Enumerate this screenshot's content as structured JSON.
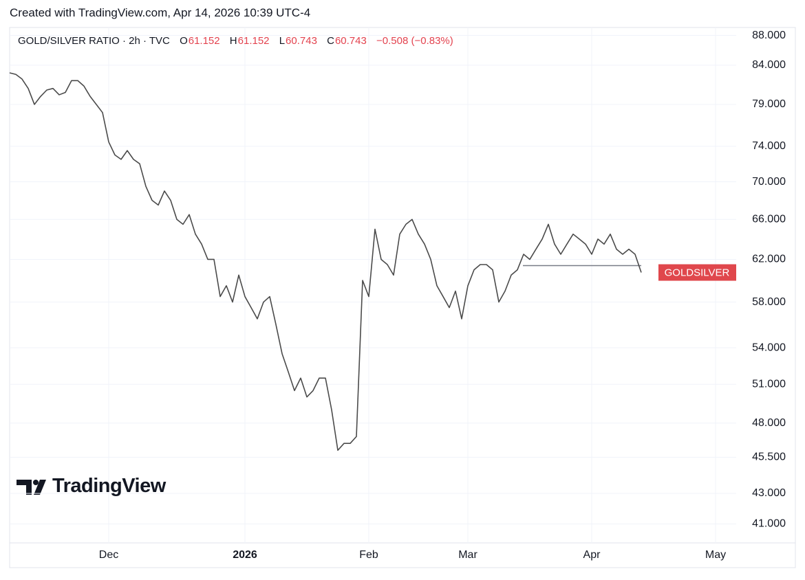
{
  "caption": "Created with TradingView.com, Apr 14, 2026 10:39 UTC-4",
  "watermark": "TradingView",
  "chart_data": {
    "type": "line",
    "legend": {
      "symbol": "GOLD/SILVER RATIO · 2h · TVC",
      "open_key": "O",
      "open": "61.152",
      "high_key": "H",
      "high": "61.152",
      "low_key": "L",
      "low": "60.743",
      "close_key": "C",
      "close": "60.743",
      "change": "−0.508 (−0.83%)"
    },
    "categories": [
      null,
      null,
      null,
      null,
      null,
      null,
      null,
      null,
      null,
      null,
      null,
      null,
      null,
      null,
      null,
      null,
      "Dec",
      null,
      null,
      null,
      null,
      null,
      null,
      null,
      null,
      null,
      null,
      null,
      null,
      null,
      null,
      null,
      null,
      null,
      null,
      null,
      null,
      null,
      "2026",
      null,
      null,
      null,
      null,
      null,
      null,
      null,
      null,
      null,
      null,
      null,
      null,
      null,
      null,
      null,
      null,
      null,
      null,
      null,
      "Feb",
      null,
      null,
      null,
      null,
      null,
      null,
      null,
      null,
      null,
      null,
      null,
      null,
      null,
      null,
      null,
      "Mar",
      null,
      null,
      null,
      null,
      null,
      null,
      null,
      null,
      null,
      null,
      null,
      null,
      null,
      null,
      null,
      null,
      null,
      null,
      null,
      "Apr",
      null,
      null,
      null,
      null,
      null,
      null,
      null,
      null,
      null,
      null,
      null,
      null,
      null,
      null,
      null,
      null,
      null,
      null,
      null,
      "May"
    ],
    "series": [
      {
        "name": "GOLDSILVER",
        "color": "#4a4a4a",
        "label_color": "#e0474c",
        "values": [
          83.0,
          82.8,
          82.2,
          81.0,
          79.0,
          80.0,
          80.8,
          81.0,
          80.2,
          80.5,
          82.0,
          82.0,
          81.3,
          80.0,
          79.0,
          78.0,
          74.5,
          73.0,
          72.5,
          73.5,
          72.5,
          72.0,
          69.5,
          68.0,
          67.5,
          69.0,
          68.0,
          66.0,
          65.5,
          66.5,
          64.5,
          63.5,
          62.0,
          62.0,
          58.5,
          59.5,
          58.0,
          60.5,
          58.5,
          57.5,
          56.5,
          58.0,
          58.5,
          56.0,
          53.5,
          52.0,
          50.5,
          51.5,
          50.0,
          50.5,
          51.5,
          51.5,
          49.0,
          46.0,
          46.5,
          46.5,
          47.0,
          60.0,
          58.5,
          65.0,
          62.0,
          61.5,
          60.5,
          64.5,
          65.5,
          66.0,
          64.5,
          63.5,
          62.0,
          59.5,
          58.5,
          57.5,
          59.0,
          56.5,
          59.5,
          61.0,
          61.5,
          61.5,
          61.0,
          58.0,
          59.0,
          60.5,
          61.0,
          62.5,
          62.0,
          63.0,
          64.0,
          65.5,
          63.5,
          62.5,
          63.5,
          64.5,
          64.0,
          63.5,
          62.5,
          64.0,
          63.5,
          64.5,
          63.0,
          62.5,
          63.0,
          62.5,
          60.743,
          null,
          null,
          null,
          null,
          null,
          null,
          null,
          null,
          null,
          null,
          null,
          null
        ]
      }
    ],
    "level": 61.4,
    "level_color": "#787b86",
    "log": true,
    "grid": true,
    "ylim": [
      39.8,
      89.1
    ],
    "yticks": [
      {
        "value": 41,
        "label": "41.000"
      },
      {
        "value": 43,
        "label": "43.000"
      },
      {
        "value": 45.5,
        "label": "45.500"
      },
      {
        "value": 48,
        "label": "48.000"
      },
      {
        "value": 51,
        "label": "51.000"
      },
      {
        "value": 54,
        "label": "54.000"
      },
      {
        "value": 58,
        "label": "58.000"
      },
      {
        "value": 62,
        "label": "62.000"
      },
      {
        "value": 66,
        "label": "66.000"
      },
      {
        "value": 70,
        "label": "70.000"
      },
      {
        "value": 74,
        "label": "74.000"
      },
      {
        "value": 79,
        "label": "79.000"
      },
      {
        "value": 84,
        "label": "84.000"
      },
      {
        "value": 88,
        "label": "88.000"
      }
    ]
  }
}
